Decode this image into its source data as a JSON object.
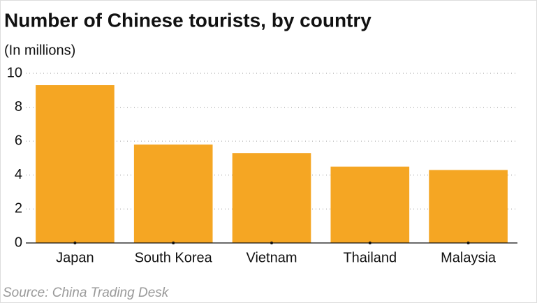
{
  "chart_data": {
    "type": "bar",
    "title": "Number of Chinese tourists, by country",
    "subtitle": "(In millions)",
    "source": "Source: China Trading Desk",
    "categories": [
      "Japan",
      "South Korea",
      "Vietnam",
      "Thailand",
      "Malaysia"
    ],
    "values": [
      9.3,
      5.8,
      5.3,
      4.5,
      4.3
    ],
    "color": "#f5a623",
    "ylim": [
      0,
      10
    ],
    "yticks": [
      0,
      2,
      4,
      6,
      8,
      10
    ],
    "grid": true
  }
}
